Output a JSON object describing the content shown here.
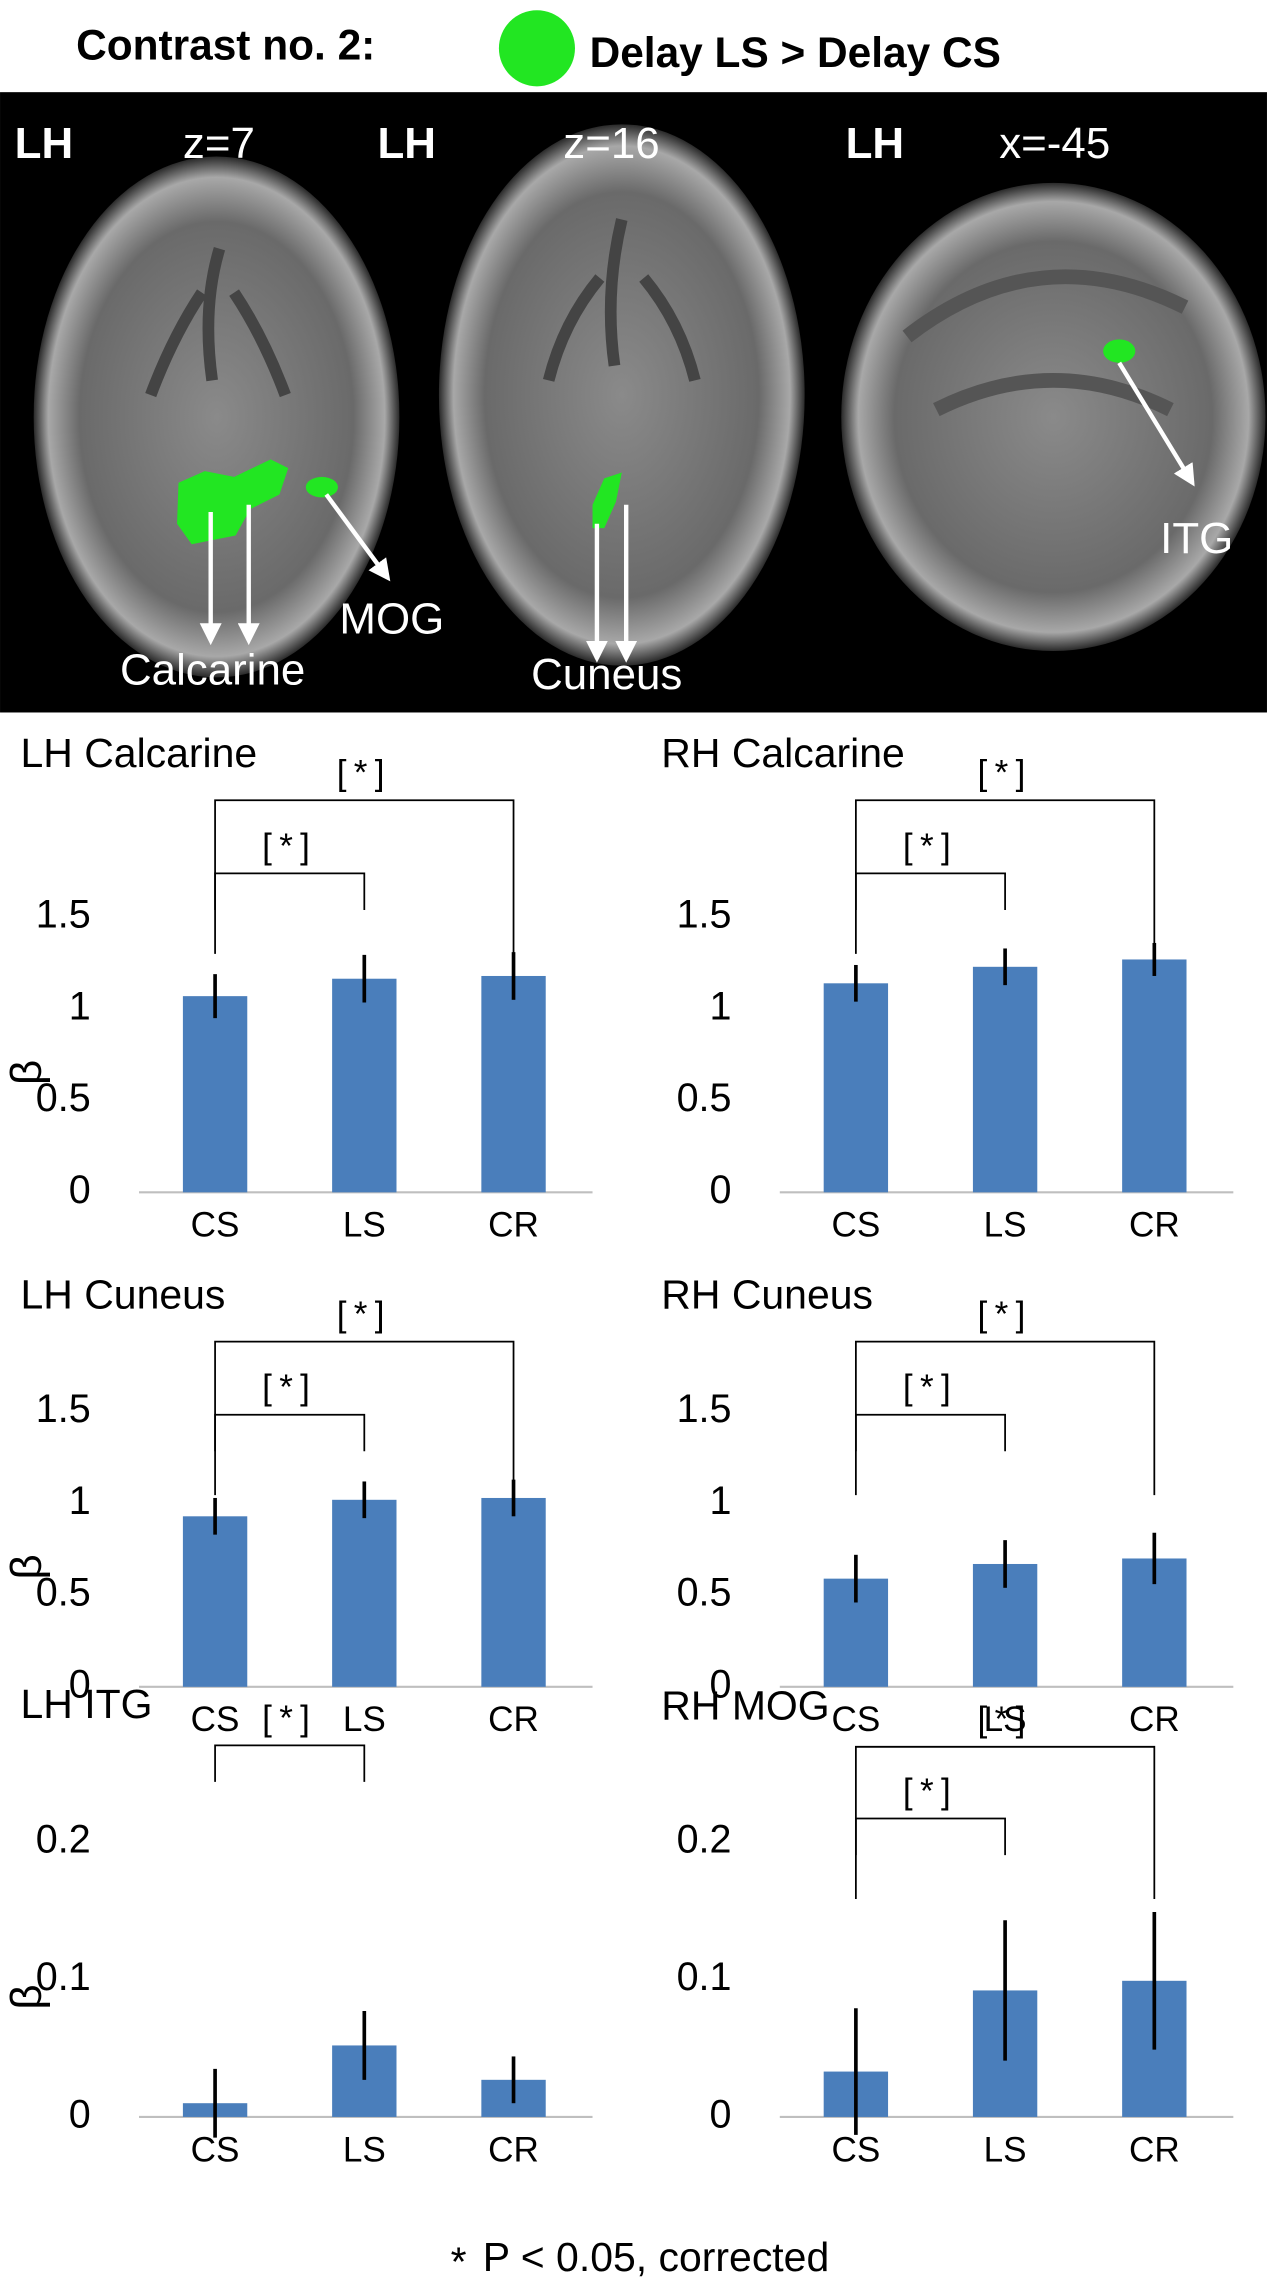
{
  "header": {
    "contrast": "Contrast no. 2:",
    "description": "Delay LS > Delay CS"
  },
  "brain_panels": [
    {
      "hemisphere": "LH",
      "slice": "z=7",
      "regions": [
        "Calcarine",
        "MOG"
      ]
    },
    {
      "hemisphere": "LH",
      "slice": "z=16",
      "regions": [
        "Cuneus"
      ]
    },
    {
      "hemisphere": "LH",
      "slice": "x=-45",
      "regions": [
        "ITG"
      ]
    }
  ],
  "chart_data": [
    {
      "type": "bar",
      "title": "LH Calcarine",
      "ylabel": "β",
      "categories": [
        "CS",
        "LS",
        "CR"
      ],
      "values": [
        1.07,
        1.165,
        1.18
      ],
      "errors": [
        0.12,
        0.13,
        0.13
      ],
      "color": "#4a7ebb",
      "ylim": [
        0,
        1.5
      ],
      "yticks": [
        0,
        0.5,
        1,
        1.5
      ],
      "significance": [
        {
          "from": "CS",
          "to": "CR",
          "label": "[*]"
        },
        {
          "from": "CS",
          "to": "LS",
          "label": "[*]"
        }
      ]
    },
    {
      "type": "bar",
      "title": "RH Calcarine",
      "categories": [
        "CS",
        "LS",
        "CR"
      ],
      "values": [
        1.14,
        1.23,
        1.27
      ],
      "errors": [
        0.1,
        0.1,
        0.09
      ],
      "color": "#4a7ebb",
      "ylim": [
        0,
        1.5
      ],
      "yticks": [
        0,
        0.5,
        1,
        1.5
      ],
      "significance": [
        {
          "from": "CS",
          "to": "CR",
          "label": "[*]"
        },
        {
          "from": "CS",
          "to": "LS",
          "label": "[*]"
        }
      ]
    },
    {
      "type": "bar",
      "title": "LH Cuneus",
      "ylabel": "β",
      "categories": [
        "CS",
        "LS",
        "CR"
      ],
      "values": [
        0.93,
        1.02,
        1.03
      ],
      "errors": [
        0.1,
        0.1,
        0.1
      ],
      "color": "#4a7ebb",
      "ylim": [
        0,
        1.5
      ],
      "yticks": [
        0,
        0.5,
        1,
        1.5
      ],
      "significance": [
        {
          "from": "CS",
          "to": "CR",
          "label": "[*]"
        },
        {
          "from": "CS",
          "to": "LS",
          "label": "[*]"
        }
      ]
    },
    {
      "type": "bar",
      "title": "RH Cuneus",
      "categories": [
        "CS",
        "LS",
        "CR"
      ],
      "values": [
        0.59,
        0.67,
        0.7
      ],
      "errors": [
        0.13,
        0.13,
        0.14
      ],
      "color": "#4a7ebb",
      "ylim": [
        0,
        1.5
      ],
      "yticks": [
        0,
        0.5,
        1,
        1.5
      ],
      "significance": [
        {
          "from": "CS",
          "to": "CR",
          "label": "[*]"
        },
        {
          "from": "CS",
          "to": "LS",
          "label": "[*]"
        }
      ]
    },
    {
      "type": "bar",
      "title": "LH ITG",
      "ylabel": "β",
      "categories": [
        "CS",
        "LS",
        "CR"
      ],
      "values": [
        0.01,
        0.052,
        0.027
      ],
      "errors": [
        0.025,
        0.025,
        0.017
      ],
      "color": "#4a7ebb",
      "ylim": [
        0,
        0.2
      ],
      "yticks": [
        0,
        0.1,
        0.2
      ],
      "significance": [
        {
          "from": "CS",
          "to": "LS",
          "label": "[*]"
        }
      ]
    },
    {
      "type": "bar",
      "title": "RH MOG",
      "categories": [
        "CS",
        "LS",
        "CR"
      ],
      "values": [
        0.033,
        0.092,
        0.099
      ],
      "errors": [
        0.046,
        0.051,
        0.05
      ],
      "color": "#4a7ebb",
      "ylim": [
        0,
        0.2
      ],
      "yticks": [
        0,
        0.1,
        0.2
      ],
      "significance": [
        {
          "from": "CS",
          "to": "CR",
          "label": "[*]"
        },
        {
          "from": "CS",
          "to": "LS",
          "label": "[*]"
        }
      ]
    }
  ],
  "footnote": {
    "symbol": "*",
    "text": "P < 0.05, corrected"
  }
}
